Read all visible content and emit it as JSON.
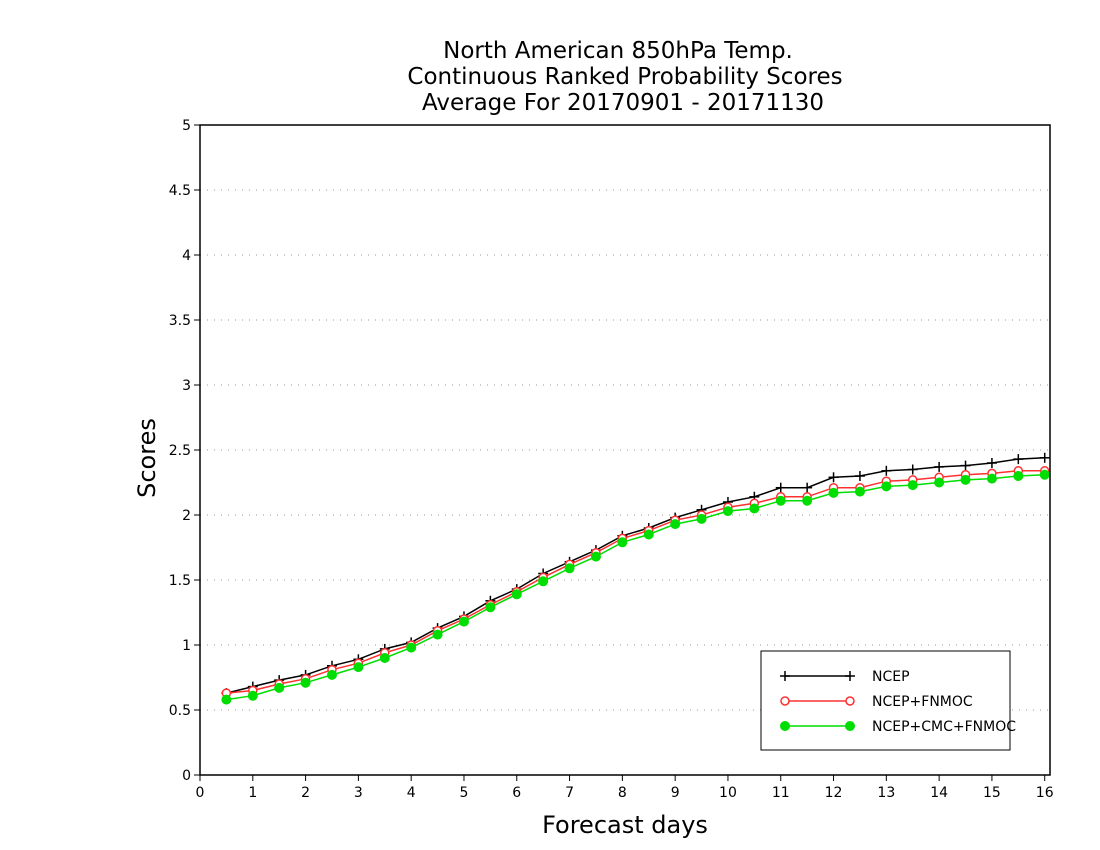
{
  "chart_data": {
    "type": "line",
    "title_lines": [
      "North American 850hPa Temp.",
      "Continuous Ranked Probability Scores",
      "Average For 20170901 - 20171130"
    ],
    "xlabel": "Forecast days",
    "ylabel": "Scores",
    "xlim": [
      0,
      16.1
    ],
    "ylim": [
      0,
      5
    ],
    "xticks": [
      0,
      1,
      2,
      3,
      4,
      5,
      6,
      7,
      8,
      9,
      10,
      11,
      12,
      13,
      14,
      15,
      16
    ],
    "xtick_labels": [
      "0",
      "1",
      "2",
      "3",
      "4",
      "5",
      "6",
      "7",
      "8",
      "9",
      "10",
      "11",
      "12",
      "13",
      "14",
      "15",
      "16"
    ],
    "yticks": [
      0,
      0.5,
      1,
      1.5,
      2,
      2.5,
      3,
      3.5,
      4,
      4.5,
      5
    ],
    "ytick_labels": [
      "0",
      "0.5",
      "1",
      "1.5",
      "2",
      "2.5",
      "3",
      "3.5",
      "4",
      "4.5",
      "5"
    ],
    "grid": "horizontal dotted",
    "legend_position": "bottom-right",
    "x": [
      0.5,
      1,
      1.5,
      2,
      2.5,
      3,
      3.5,
      4,
      4.5,
      5,
      5.5,
      6,
      6.5,
      7,
      7.5,
      8,
      8.5,
      9,
      9.5,
      10,
      10.5,
      11,
      11.5,
      12,
      12.5,
      13,
      13.5,
      14,
      14.5,
      15,
      15.5,
      16
    ],
    "series": [
      {
        "name": "NCEP",
        "color": "#000000",
        "marker": "plus",
        "values": [
          0.63,
          0.68,
          0.73,
          0.77,
          0.84,
          0.89,
          0.97,
          1.02,
          1.13,
          1.22,
          1.34,
          1.43,
          1.55,
          1.64,
          1.73,
          1.84,
          1.9,
          1.98,
          2.04,
          2.1,
          2.14,
          2.21,
          2.21,
          2.29,
          2.3,
          2.34,
          2.35,
          2.37,
          2.38,
          2.4,
          2.43,
          2.44
        ]
      },
      {
        "name": "NCEP+FNMOC",
        "color": "#ff3030",
        "marker": "open-circle",
        "values": [
          0.63,
          0.65,
          0.7,
          0.74,
          0.81,
          0.86,
          0.94,
          1.0,
          1.11,
          1.2,
          1.31,
          1.41,
          1.52,
          1.62,
          1.71,
          1.82,
          1.88,
          1.96,
          2.0,
          2.06,
          2.09,
          2.14,
          2.14,
          2.21,
          2.21,
          2.26,
          2.27,
          2.29,
          2.31,
          2.32,
          2.34,
          2.34
        ]
      },
      {
        "name": "NCEP+CMC+FNMOC",
        "color": "#00dd00",
        "marker": "filled-circle",
        "values": [
          0.58,
          0.61,
          0.67,
          0.71,
          0.77,
          0.83,
          0.9,
          0.98,
          1.08,
          1.18,
          1.29,
          1.39,
          1.49,
          1.59,
          1.68,
          1.79,
          1.85,
          1.93,
          1.97,
          2.03,
          2.05,
          2.11,
          2.11,
          2.17,
          2.18,
          2.22,
          2.23,
          2.25,
          2.27,
          2.28,
          2.3,
          2.31
        ]
      }
    ]
  }
}
